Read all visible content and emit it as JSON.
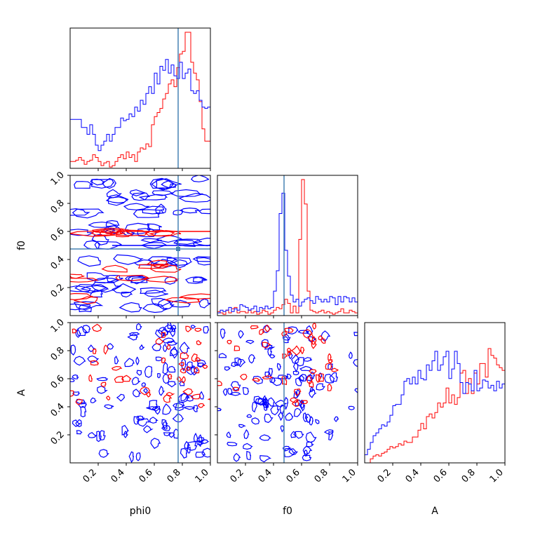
{
  "chart_data": {
    "type": "corner",
    "parameters": [
      "phi0",
      "f0",
      "A"
    ],
    "ticks": [
      0.2,
      0.4,
      0.6,
      0.8,
      1.0
    ],
    "tick_labels": [
      "0.2",
      "0.4",
      "0.6",
      "0.8",
      "1.0"
    ],
    "range": [
      0,
      1
    ],
    "truth": {
      "phi0": 0.77,
      "f0": 0.475
    },
    "colors": {
      "series_a": "#0000ff",
      "series_b": "#ff0000",
      "truth": "#4682b4"
    },
    "histograms": {
      "phi0": {
        "x0": 0.0,
        "step": 0.02,
        "blue": [
          0.36,
          0.36,
          0.36,
          0.36,
          0.3,
          0.3,
          0.25,
          0.32,
          0.25,
          0.17,
          0.13,
          0.17,
          0.2,
          0.25,
          0.2,
          0.25,
          0.3,
          0.3,
          0.37,
          0.35,
          0.36,
          0.4,
          0.38,
          0.45,
          0.42,
          0.5,
          0.47,
          0.55,
          0.6,
          0.55,
          0.7,
          0.62,
          0.75,
          0.72,
          0.8,
          0.7,
          0.76,
          0.68,
          0.66,
          0.78,
          0.66,
          0.7,
          0.73,
          0.57,
          0.55,
          0.57,
          0.5,
          0.45,
          0.44,
          0.45
        ],
        "red": [
          0.05,
          0.05,
          0.06,
          0.08,
          0.06,
          0.03,
          0.05,
          0.06,
          0.1,
          0.08,
          0.05,
          0.02,
          0.04,
          0.05,
          0.01,
          0.02,
          0.05,
          0.08,
          0.1,
          0.07,
          0.12,
          0.08,
          0.1,
          0.05,
          0.12,
          0.15,
          0.14,
          0.18,
          0.16,
          0.32,
          0.38,
          0.41,
          0.44,
          0.51,
          0.55,
          0.62,
          0.65,
          0.6,
          0.74,
          0.84,
          0.86,
          1.0,
          1.0,
          0.78,
          0.7,
          0.65,
          0.49,
          0.29,
          0.2,
          0.2
        ]
      },
      "f0": {
        "x0": 0.0,
        "step": 0.02,
        "blue": [
          0.02,
          0.04,
          0.03,
          0.04,
          0.06,
          0.03,
          0.05,
          0.04,
          0.08,
          0.07,
          0.06,
          0.04,
          0.05,
          0.07,
          0.03,
          0.06,
          0.05,
          0.07,
          0.05,
          0.06,
          0.18,
          0.33,
          0.75,
          0.9,
          0.48,
          0.29,
          0.15,
          0.1,
          0.12,
          0.07,
          0.1,
          0.12,
          0.13,
          0.11,
          0.09,
          0.14,
          0.12,
          0.1,
          0.12,
          0.1,
          0.14,
          0.13,
          0.08,
          0.14,
          0.1,
          0.14,
          0.13,
          0.1,
          0.13,
          0.1
        ],
        "red": [
          0.03,
          0.02,
          0.01,
          0.04,
          0.02,
          0.05,
          0.06,
          0.02,
          0.03,
          0.03,
          0.02,
          0.04,
          0.02,
          0.03,
          0.01,
          0.02,
          0.04,
          0.03,
          0.01,
          0.02,
          0.04,
          0.06,
          0.05,
          0.08,
          0.12,
          0.09,
          0.02,
          0.07,
          0.02,
          0.56,
          1.0,
          0.82,
          0.18,
          0.04,
          0.03,
          0.02,
          0.03,
          0.04,
          0.02,
          0.03,
          0.02,
          0.01,
          0.02,
          0.03,
          0.05,
          0.02,
          0.02,
          0.04,
          0.03,
          0.02
        ]
      },
      "A": {
        "x0": 0.0,
        "step": 0.02,
        "blue": [
          0.06,
          0.1,
          0.15,
          0.2,
          0.22,
          0.25,
          0.28,
          0.27,
          0.3,
          0.35,
          0.42,
          0.43,
          0.43,
          0.5,
          0.6,
          0.62,
          0.58,
          0.63,
          0.58,
          0.68,
          0.62,
          0.61,
          0.72,
          0.68,
          0.75,
          0.82,
          0.68,
          0.72,
          0.78,
          0.82,
          0.62,
          0.69,
          0.82,
          0.73,
          0.59,
          0.51,
          0.59,
          0.58,
          0.53,
          0.68,
          0.53,
          0.55,
          0.61,
          0.6,
          0.55,
          0.57,
          0.53,
          0.6,
          0.55,
          0.58
        ],
        "red": [
          0.0,
          0.0,
          0.03,
          0.05,
          0.06,
          0.05,
          0.07,
          0.08,
          0.1,
          0.12,
          0.11,
          0.12,
          0.14,
          0.13,
          0.16,
          0.15,
          0.15,
          0.19,
          0.19,
          0.24,
          0.29,
          0.25,
          0.34,
          0.36,
          0.33,
          0.37,
          0.44,
          0.41,
          0.44,
          0.55,
          0.44,
          0.5,
          0.43,
          0.48,
          0.66,
          0.68,
          0.51,
          0.62,
          0.51,
          0.66,
          0.58,
          0.73,
          0.73,
          0.63,
          0.84,
          0.79,
          0.77,
          0.72,
          0.7,
          0.68
        ]
      }
    },
    "labels": {
      "phi0": "phi0",
      "f0": "f0",
      "A": "A"
    }
  }
}
